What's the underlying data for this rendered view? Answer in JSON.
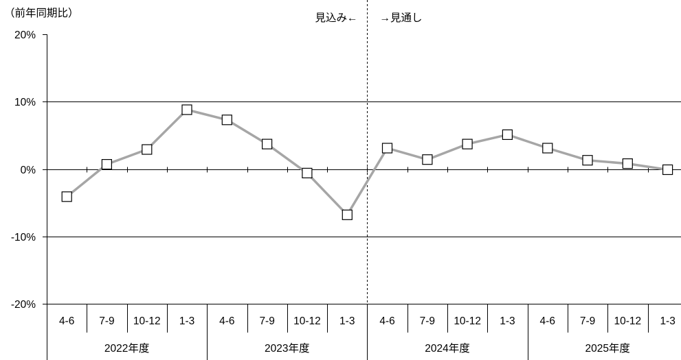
{
  "chart_data": {
    "type": "line",
    "ylabel": "（前年同期比）",
    "ylim": [
      -20,
      20
    ],
    "yticks": [
      20,
      10,
      0,
      -10,
      -20
    ],
    "ytick_labels": [
      "20%",
      "10%",
      "0%",
      "-10%",
      "-20%"
    ],
    "grid": true,
    "categories": [
      "4-6",
      "7-9",
      "10-12",
      "1-3",
      "4-6",
      "7-9",
      "10-12",
      "1-3",
      "4-6",
      "7-9",
      "10-12",
      "1-3",
      "4-6",
      "7-9",
      "10-12",
      "1-3"
    ],
    "category_groups": [
      {
        "label": "2022年度",
        "count": 4
      },
      {
        "label": "2023年度",
        "count": 4
      },
      {
        "label": "2024年度",
        "count": 4
      },
      {
        "label": "2025年度",
        "count": 4
      }
    ],
    "series": [
      {
        "values": [
          -4.1,
          0.7,
          2.9,
          8.8,
          7.3,
          3.7,
          -0.6,
          -6.8,
          3.1,
          1.4,
          3.7,
          5.1,
          3.1,
          1.3,
          0.8,
          -0.1
        ],
        "color": "#a6a6a6"
      }
    ],
    "divider": {
      "before_category_index": 8,
      "left_label": "見込み←",
      "right_label": "→見通し"
    }
  }
}
